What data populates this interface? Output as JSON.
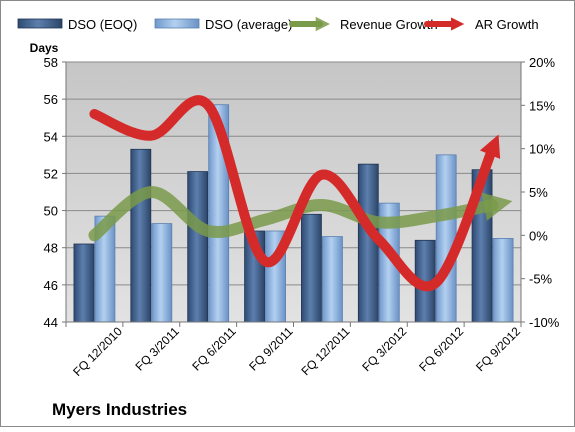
{
  "chart_data": {
    "type": "bar",
    "title": "Myers Industries",
    "ylabel_left": "Days",
    "categories": [
      "FQ 12/2010",
      "FQ 3/2011",
      "FQ 6/2011",
      "FQ 9/2011",
      "FQ 12/2011",
      "FQ 3/2012",
      "FQ 6/2012",
      "FQ 9/2012"
    ],
    "left_axis": {
      "min": 44,
      "max": 58,
      "ticks": [
        "44",
        "46",
        "48",
        "50",
        "52",
        "54",
        "56",
        "58"
      ]
    },
    "right_axis": {
      "min": -10,
      "max": 20,
      "ticks": [
        "-10%",
        "-5%",
        "0%",
        "5%",
        "10%",
        "15%",
        "20%"
      ]
    },
    "grid": true,
    "legend_position": "top",
    "series": [
      {
        "name": "DSO (EOQ)",
        "kind": "bar",
        "axis": "left",
        "color": "#3f5f8c",
        "values": [
          48.2,
          53.3,
          52.1,
          48.9,
          49.8,
          52.5,
          48.4,
          52.2
        ]
      },
      {
        "name": "DSO (average)",
        "kind": "bar",
        "axis": "left",
        "color": "#8cb4e2",
        "values": [
          49.7,
          49.3,
          55.7,
          48.9,
          48.6,
          50.4,
          53.0,
          48.5
        ]
      },
      {
        "name": "Revenue Growth",
        "kind": "line",
        "axis": "right",
        "color": "#7a9a4a",
        "values": [
          0.0,
          5.0,
          0.5,
          1.8,
          3.5,
          1.5,
          2.2,
          3.5
        ]
      },
      {
        "name": "AR Growth",
        "kind": "line",
        "axis": "right",
        "color": "#d52a2a",
        "values": [
          14.0,
          11.5,
          15.0,
          -3.0,
          7.0,
          -0.5,
          -5.5,
          10.0
        ]
      }
    ]
  }
}
